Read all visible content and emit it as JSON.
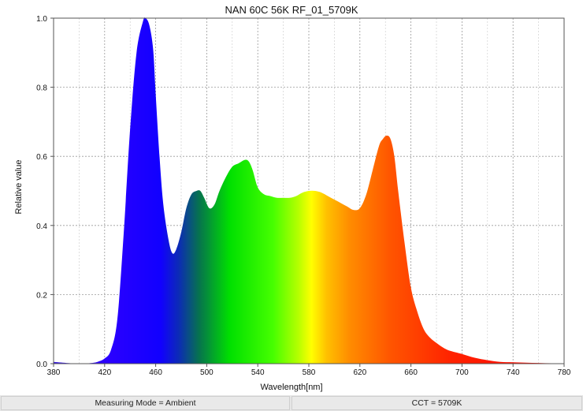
{
  "chart_data": {
    "type": "area",
    "title": "NAN 60C 56K RF_01_5709K",
    "xlabel": "Wavelength[nm]",
    "ylabel": "Relative value",
    "xlim": [
      380,
      780
    ],
    "ylim": [
      0,
      1.0
    ],
    "x_ticks": [
      "380",
      "420",
      "460",
      "500",
      "540",
      "580",
      "620",
      "660",
      "700",
      "740",
      "780"
    ],
    "y_ticks": [
      "0.0",
      "0.2",
      "0.4",
      "0.6",
      "0.8",
      "1.0"
    ],
    "grid": true,
    "fill": "visible-spectrum gradient",
    "x": [
      380,
      390,
      400,
      410,
      415,
      420,
      425,
      430,
      435,
      440,
      445,
      450,
      452,
      455,
      458,
      460,
      463,
      466,
      470,
      473,
      476,
      480,
      484,
      488,
      492,
      495,
      498,
      502,
      506,
      510,
      515,
      520,
      525,
      530,
      533,
      536,
      540,
      545,
      550,
      555,
      560,
      565,
      570,
      575,
      580,
      585,
      590,
      595,
      600,
      605,
      610,
      615,
      620,
      625,
      630,
      635,
      638,
      641,
      644,
      647,
      650,
      655,
      660,
      665,
      670,
      675,
      680,
      685,
      690,
      700,
      710,
      720,
      730,
      740,
      750,
      760,
      770,
      780
    ],
    "values": [
      0.005,
      0.002,
      0.0,
      0.002,
      0.006,
      0.015,
      0.04,
      0.13,
      0.38,
      0.68,
      0.9,
      0.99,
      1.0,
      0.98,
      0.91,
      0.78,
      0.6,
      0.46,
      0.36,
      0.32,
      0.33,
      0.38,
      0.45,
      0.49,
      0.5,
      0.5,
      0.48,
      0.45,
      0.46,
      0.5,
      0.54,
      0.57,
      0.58,
      0.59,
      0.585,
      0.56,
      0.51,
      0.49,
      0.485,
      0.48,
      0.48,
      0.48,
      0.485,
      0.495,
      0.5,
      0.5,
      0.495,
      0.485,
      0.475,
      0.465,
      0.455,
      0.445,
      0.45,
      0.49,
      0.56,
      0.63,
      0.65,
      0.66,
      0.65,
      0.6,
      0.5,
      0.35,
      0.22,
      0.15,
      0.1,
      0.075,
      0.06,
      0.047,
      0.038,
      0.028,
      0.017,
      0.01,
      0.005,
      0.004,
      0.003,
      0.002,
      0.001,
      0.0
    ]
  },
  "footer": {
    "measuring_mode": "Measuring Mode = Ambient",
    "cct": "CCT = 5709K"
  }
}
